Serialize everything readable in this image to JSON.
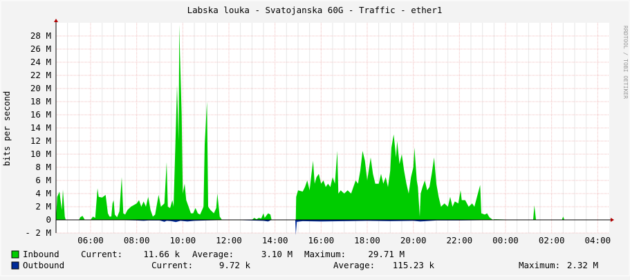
{
  "chart_data": {
    "type": "area",
    "title": "Labska louka - Svatojanska 60G - Traffic - ether1",
    "ylabel": "bits per second",
    "watermark": "RRDTOOL / TOBI OETIKER",
    "x_range": [
      "04:30",
      "04:30"
    ],
    "x_ticks": [
      "06:00",
      "08:00",
      "10:00",
      "12:00",
      "14:00",
      "16:00",
      "18:00",
      "20:00",
      "22:00",
      "00:00",
      "02:00",
      "04:00"
    ],
    "y_range": [
      -2,
      30
    ],
    "y_ticks": [
      "- 2 M",
      "0",
      "2 M",
      "4 M",
      "6 M",
      "8 M",
      "10 M",
      "12 M",
      "14 M",
      "16 M",
      "18 M",
      "20 M",
      "22 M",
      "24 M",
      "26 M",
      "28 M"
    ],
    "grid": true,
    "series": [
      {
        "name": "Inbound",
        "color": "#00cc00",
        "stats": {
          "current_label": "Current:",
          "current": "11.66 k",
          "average_label": "Average:",
          "average": "3.10 M",
          "maximum_label": "Maximum:",
          "maximum": "29.71 M"
        },
        "points": [
          [
            4.5,
            0
          ],
          [
            4.55,
            3.5
          ],
          [
            4.65,
            4.3
          ],
          [
            4.75,
            1.5
          ],
          [
            4.8,
            4.6
          ],
          [
            4.88,
            0.5
          ],
          [
            4.92,
            0
          ],
          [
            5.5,
            0
          ],
          [
            5.55,
            0.4
          ],
          [
            5.65,
            0.6
          ],
          [
            5.75,
            0
          ],
          [
            6.0,
            0
          ],
          [
            6.1,
            0.5
          ],
          [
            6.2,
            0.3
          ],
          [
            6.3,
            4.8
          ],
          [
            6.35,
            3.5
          ],
          [
            6.5,
            3.4
          ],
          [
            6.65,
            3.8
          ],
          [
            6.75,
            1.0
          ],
          [
            6.82,
            0.5
          ],
          [
            6.9,
            0.5
          ],
          [
            6.95,
            2.5
          ],
          [
            7.0,
            3.0
          ],
          [
            7.05,
            0.8
          ],
          [
            7.15,
            0.4
          ],
          [
            7.25,
            1.3
          ],
          [
            7.35,
            6.5
          ],
          [
            7.42,
            1.0
          ],
          [
            7.5,
            0.8
          ],
          [
            7.6,
            1.5
          ],
          [
            7.75,
            2.0
          ],
          [
            8.0,
            2.5
          ],
          [
            8.1,
            3.0
          ],
          [
            8.2,
            2.0
          ],
          [
            8.3,
            2.8
          ],
          [
            8.4,
            2.0
          ],
          [
            8.5,
            3.5
          ],
          [
            8.6,
            1.5
          ],
          [
            8.7,
            0.5
          ],
          [
            8.8,
            0.8
          ],
          [
            8.95,
            3.8
          ],
          [
            9.05,
            2.0
          ],
          [
            9.2,
            2.5
          ],
          [
            9.3,
            8.8
          ],
          [
            9.35,
            2.0
          ],
          [
            9.45,
            1.8
          ],
          [
            9.55,
            3.0
          ],
          [
            9.6,
            2.0
          ],
          [
            9.7,
            14.0
          ],
          [
            9.75,
            20.5
          ],
          [
            9.82,
            12.0
          ],
          [
            9.85,
            29.7
          ],
          [
            9.88,
            25.0
          ],
          [
            9.95,
            16.0
          ],
          [
            10.0,
            4.0
          ],
          [
            10.08,
            5.5
          ],
          [
            10.15,
            3.0
          ],
          [
            10.25,
            2.0
          ],
          [
            10.35,
            1.0
          ],
          [
            10.45,
            1.0
          ],
          [
            10.55,
            1.8
          ],
          [
            10.65,
            1.0
          ],
          [
            10.75,
            0.8
          ],
          [
            10.9,
            2.0
          ],
          [
            10.95,
            11.5
          ],
          [
            11.05,
            18.0
          ],
          [
            11.1,
            2.0
          ],
          [
            11.2,
            1.5
          ],
          [
            11.35,
            1.0
          ],
          [
            11.45,
            1.8
          ],
          [
            11.5,
            4.0
          ],
          [
            11.6,
            0.5
          ],
          [
            11.7,
            0
          ],
          [
            12.0,
            0
          ],
          [
            13.0,
            0
          ],
          [
            13.1,
            0.3
          ],
          [
            13.2,
            0.1
          ],
          [
            13.3,
            0.3
          ],
          [
            13.4,
            0.2
          ],
          [
            13.5,
            1.0
          ],
          [
            13.55,
            0.3
          ],
          [
            13.7,
            1.0
          ],
          [
            13.8,
            0.8
          ],
          [
            13.85,
            0
          ],
          [
            14.9,
            0
          ],
          [
            14.92,
            3.5
          ],
          [
            15.0,
            4.5
          ],
          [
            15.2,
            4.3
          ],
          [
            15.3,
            5.0
          ],
          [
            15.4,
            6.0
          ],
          [
            15.5,
            4.5
          ],
          [
            15.55,
            6.0
          ],
          [
            15.65,
            9.0
          ],
          [
            15.72,
            5.5
          ],
          [
            15.8,
            6.5
          ],
          [
            15.9,
            7.0
          ],
          [
            16.0,
            5.5
          ],
          [
            16.1,
            6.0
          ],
          [
            16.2,
            5.0
          ],
          [
            16.3,
            5.5
          ],
          [
            16.4,
            5.0
          ],
          [
            16.5,
            6.5
          ],
          [
            16.6,
            5.5
          ],
          [
            16.7,
            10.5
          ],
          [
            16.75,
            4.0
          ],
          [
            16.85,
            4.5
          ],
          [
            17.0,
            4.0
          ],
          [
            17.15,
            4.5
          ],
          [
            17.3,
            4.0
          ],
          [
            17.5,
            6.0
          ],
          [
            17.6,
            5.5
          ],
          [
            17.7,
            7.5
          ],
          [
            17.8,
            10.5
          ],
          [
            17.9,
            9.0
          ],
          [
            18.0,
            6.0
          ],
          [
            18.15,
            9.5
          ],
          [
            18.25,
            7.0
          ],
          [
            18.35,
            5.5
          ],
          [
            18.5,
            5.5
          ],
          [
            18.6,
            7.0
          ],
          [
            18.7,
            5.5
          ],
          [
            18.8,
            6.5
          ],
          [
            18.9,
            5.0
          ],
          [
            19.0,
            7.5
          ],
          [
            19.05,
            11.0
          ],
          [
            19.15,
            13.0
          ],
          [
            19.25,
            9.5
          ],
          [
            19.3,
            12.0
          ],
          [
            19.4,
            8.5
          ],
          [
            19.5,
            10.0
          ],
          [
            19.6,
            7.5
          ],
          [
            19.7,
            5.5
          ],
          [
            19.8,
            4.0
          ],
          [
            19.9,
            6.5
          ],
          [
            20.0,
            8.0
          ],
          [
            20.05,
            11.0
          ],
          [
            20.15,
            6.0
          ],
          [
            20.2,
            5.0
          ],
          [
            20.28,
            0.5
          ],
          [
            20.32,
            4.0
          ],
          [
            20.4,
            5.0
          ],
          [
            20.5,
            6.0
          ],
          [
            20.6,
            4.5
          ],
          [
            20.7,
            5.0
          ],
          [
            20.8,
            7.0
          ],
          [
            20.9,
            9.5
          ],
          [
            21.0,
            5.5
          ],
          [
            21.1,
            3.5
          ],
          [
            21.2,
            2.0
          ],
          [
            21.35,
            2.5
          ],
          [
            21.5,
            2.0
          ],
          [
            21.6,
            3.5
          ],
          [
            21.7,
            2.0
          ],
          [
            21.8,
            2.8
          ],
          [
            21.95,
            2.5
          ],
          [
            22.05,
            4.5
          ],
          [
            22.1,
            3.0
          ],
          [
            22.25,
            3.0
          ],
          [
            22.4,
            2.0
          ],
          [
            22.55,
            2.5
          ],
          [
            22.65,
            2.0
          ],
          [
            22.8,
            4.0
          ],
          [
            22.9,
            5.3
          ],
          [
            22.95,
            1.0
          ],
          [
            23.1,
            0.8
          ],
          [
            23.2,
            1.0
          ],
          [
            23.3,
            0.4
          ],
          [
            23.45,
            0
          ],
          [
            23.5,
            0.1
          ],
          [
            23.6,
            0.1
          ],
          [
            24.0,
            0.05
          ],
          [
            25.0,
            0.05
          ],
          [
            25.2,
            0.05
          ],
          [
            25.25,
            2.2
          ],
          [
            25.32,
            0.05
          ],
          [
            26.0,
            0.05
          ],
          [
            26.45,
            0.05
          ],
          [
            26.5,
            0.5
          ],
          [
            26.55,
            0.05
          ],
          [
            28.5,
            0
          ]
        ]
      },
      {
        "name": "Outbound",
        "color": "#002a97",
        "stats": {
          "current_label": "Current:",
          "current": "9.72 k",
          "average_label": "Average:",
          "average": "115.23 k",
          "maximum_label": "Maximum:",
          "maximum": "2.32 M"
        },
        "points": [
          [
            4.5,
            0
          ],
          [
            5.0,
            0
          ],
          [
            6.5,
            0
          ],
          [
            7.5,
            -0.05
          ],
          [
            8.0,
            -0.1
          ],
          [
            8.3,
            -0.15
          ],
          [
            8.5,
            -0.1
          ],
          [
            9.0,
            -0.1
          ],
          [
            9.2,
            -0.3
          ],
          [
            9.3,
            -0.15
          ],
          [
            9.5,
            -0.2
          ],
          [
            9.7,
            -0.35
          ],
          [
            9.9,
            -0.15
          ],
          [
            10.2,
            -0.25
          ],
          [
            10.5,
            -0.15
          ],
          [
            11.0,
            -0.1
          ],
          [
            11.5,
            -0.05
          ],
          [
            12.0,
            0
          ],
          [
            13.5,
            -0.15
          ],
          [
            13.7,
            -0.25
          ],
          [
            13.85,
            0
          ],
          [
            14.88,
            0
          ],
          [
            14.9,
            -2.32
          ],
          [
            14.95,
            -0.3
          ],
          [
            15.2,
            -0.2
          ],
          [
            16.0,
            -0.25
          ],
          [
            17.0,
            -0.2
          ],
          [
            18.0,
            -0.15
          ],
          [
            19.0,
            -0.2
          ],
          [
            20.0,
            -0.15
          ],
          [
            20.3,
            -0.25
          ],
          [
            21.0,
            -0.1
          ],
          [
            22.0,
            -0.1
          ],
          [
            23.0,
            -0.05
          ],
          [
            23.5,
            0
          ],
          [
            28.5,
            0
          ]
        ]
      }
    ]
  }
}
